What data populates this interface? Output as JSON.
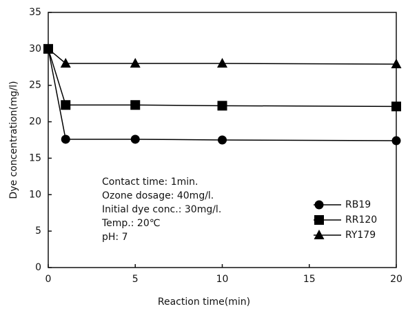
{
  "chart_data": {
    "type": "line",
    "x_label": "Reaction time(min)",
    "y_label": "Dye concentration(mg/l)",
    "x": [
      0,
      1,
      5,
      10,
      20
    ],
    "series": [
      {
        "name": "RB19",
        "color": "#000000",
        "marker": "circle",
        "values": [
          30,
          17.6,
          17.6,
          17.5,
          17.4
        ]
      },
      {
        "name": "RR120",
        "color": "#000000",
        "marker": "square",
        "values": [
          30,
          22.3,
          22.3,
          22.2,
          22.1
        ]
      },
      {
        "name": "RY179",
        "color": "#000000",
        "marker": "triangle",
        "values": [
          30,
          28,
          28,
          28,
          27.9
        ]
      }
    ],
    "xlim": [
      0,
      20
    ],
    "xticks": [
      0,
      5,
      10,
      15,
      20
    ],
    "ylim": [
      0,
      35
    ],
    "yticks": [
      0,
      5,
      10,
      15,
      20,
      25,
      30,
      35
    ],
    "grid": false,
    "legend": "lower right",
    "annotations": [
      "Contact time: 1min.",
      "Ozone dosage: 40mg/l.",
      "Initial dye conc.: 30mg/l.",
      "Temp.: 20℃",
      "pH: 7"
    ]
  }
}
